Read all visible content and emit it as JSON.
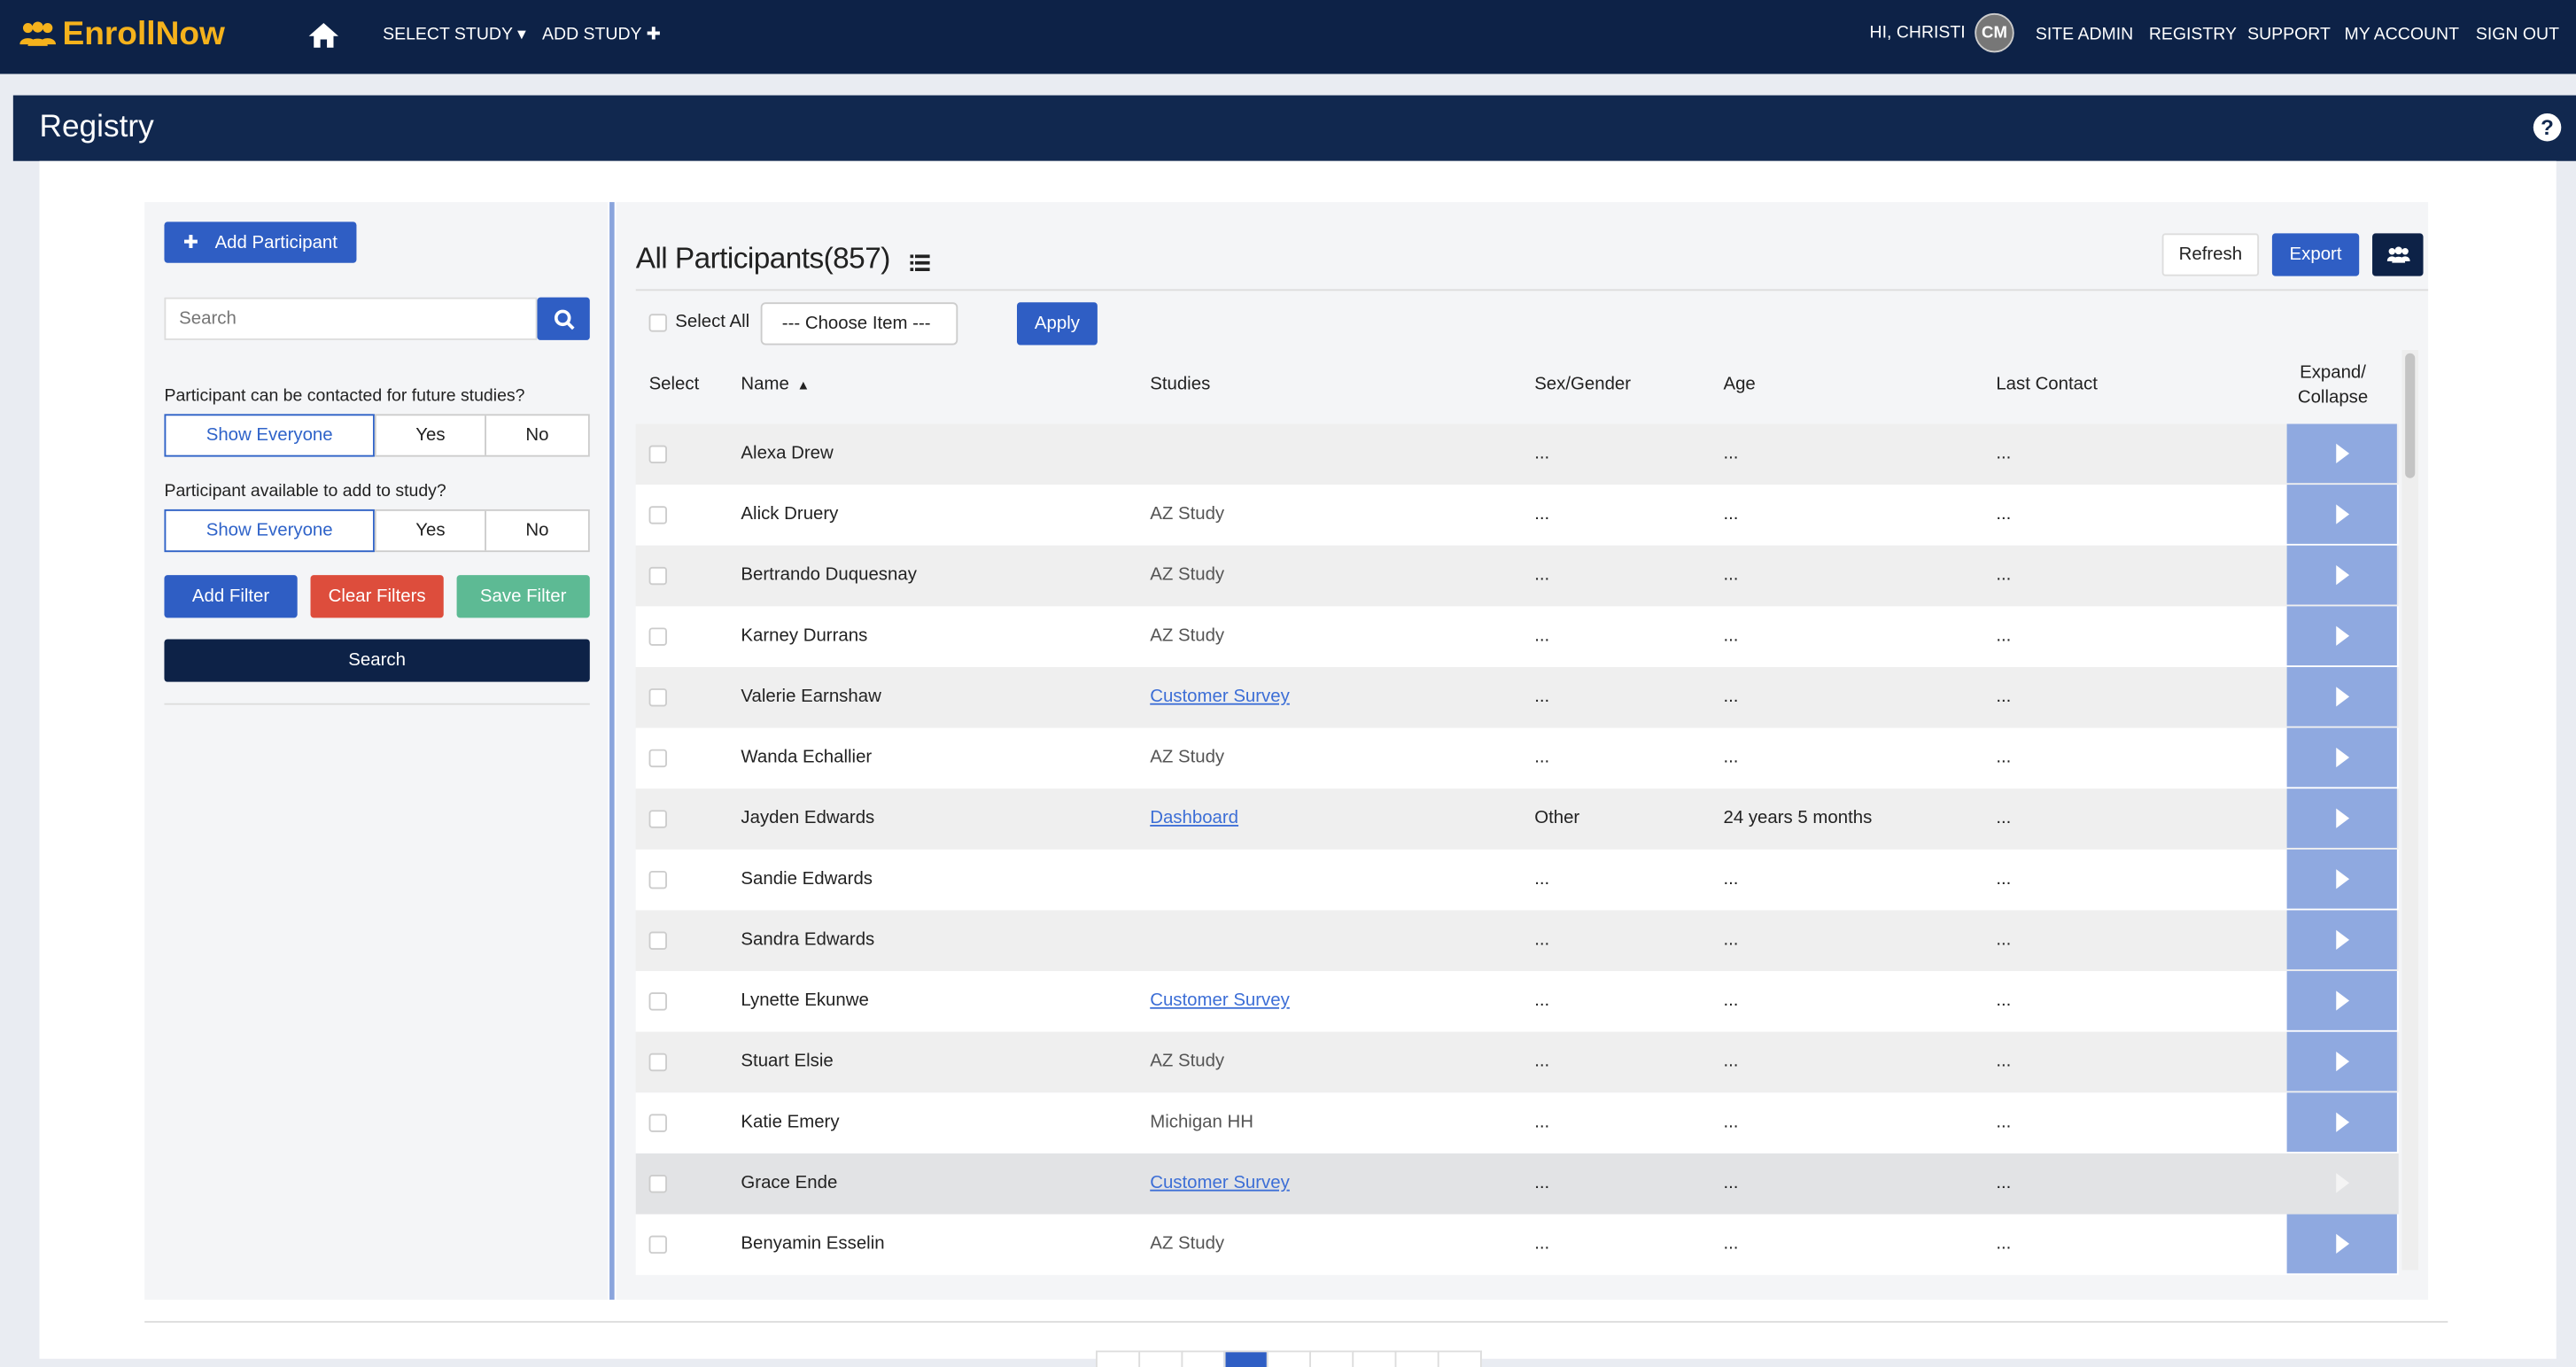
{
  "nav": {
    "brand": "EnrollNow",
    "menu": [
      "SELECT STUDY",
      "ADD STUDY"
    ],
    "greeting": "HI, CHRISTI",
    "initials": "CM",
    "links": [
      "SITE ADMIN",
      "REGISTRY",
      "SUPPORT",
      "MY ACCOUNT",
      "SIGN OUT"
    ]
  },
  "page_title": "Registry",
  "sidebar": {
    "add_participant": "Add Participant",
    "search_placeholder": "Search",
    "filters": [
      {
        "label": "Participant can be contacted for future studies?",
        "options": [
          "Show Everyone",
          "Yes",
          "No"
        ]
      },
      {
        "label": "Participant available to add to study?",
        "options": [
          "Show Everyone",
          "Yes",
          "No"
        ]
      }
    ],
    "buttons": [
      "Add Filter",
      "Clear Filters",
      "Save Filter"
    ],
    "search_button": "Search"
  },
  "main": {
    "title": "All Participants(857)",
    "actions": [
      "Refresh",
      "Export"
    ],
    "select_all": "Select All",
    "choose_item": "--- Choose Item ---",
    "apply": "Apply",
    "columns": [
      "Select",
      "Name",
      "Studies",
      "Sex/Gender",
      "Age",
      "Last Contact",
      "Expand/ Collapse"
    ],
    "rows": [
      {
        "name": "Alexa Drew",
        "sex": "...",
        "age": "...",
        "last": "..."
      },
      {
        "name": "Alick Druery",
        "study": "AZ Study",
        "sex": "...",
        "age": "...",
        "last": "..."
      },
      {
        "name": "Bertrando Duquesnay",
        "study": "AZ Study",
        "sex": "...",
        "age": "...",
        "last": "..."
      },
      {
        "name": "Karney Durrans",
        "study": "AZ Study",
        "sex": "...",
        "age": "...",
        "last": "..."
      },
      {
        "name": "Valerie Earnshaw",
        "study": "Customer Survey",
        "study_link": true,
        "sex": "...",
        "age": "...",
        "last": "..."
      },
      {
        "name": "Wanda Echallier",
        "study": "AZ Study",
        "sex": "...",
        "age": "...",
        "last": "..."
      },
      {
        "name": "Jayden Edwards",
        "study": "Dashboard",
        "study_link": true,
        "sex": "Other",
        "age": "24 years 5 months",
        "last": "..."
      },
      {
        "name": "Sandie Edwards",
        "sex": "...",
        "age": "...",
        "last": "..."
      },
      {
        "name": "Sandra Edwards",
        "sex": "...",
        "age": "...",
        "last": "..."
      },
      {
        "name": "Lynette Ekunwe",
        "study": "Customer Survey",
        "study_link": true,
        "sex": "...",
        "age": "...",
        "last": "..."
      },
      {
        "name": "Stuart Elsie",
        "study": "AZ Study",
        "sex": "...",
        "age": "...",
        "last": "..."
      },
      {
        "name": "Katie Emery",
        "study": "Michigan HH",
        "sex": "...",
        "age": "...",
        "last": "..."
      },
      {
        "name": "Grace Ende",
        "study": "Customer Survey",
        "study_link": true,
        "sex": "...",
        "age": "...",
        "last": "...",
        "highlighted": true
      },
      {
        "name": "Benyamin Esselin",
        "study": "AZ Study",
        "sex": "...",
        "age": "...",
        "last": "..."
      }
    ]
  }
}
